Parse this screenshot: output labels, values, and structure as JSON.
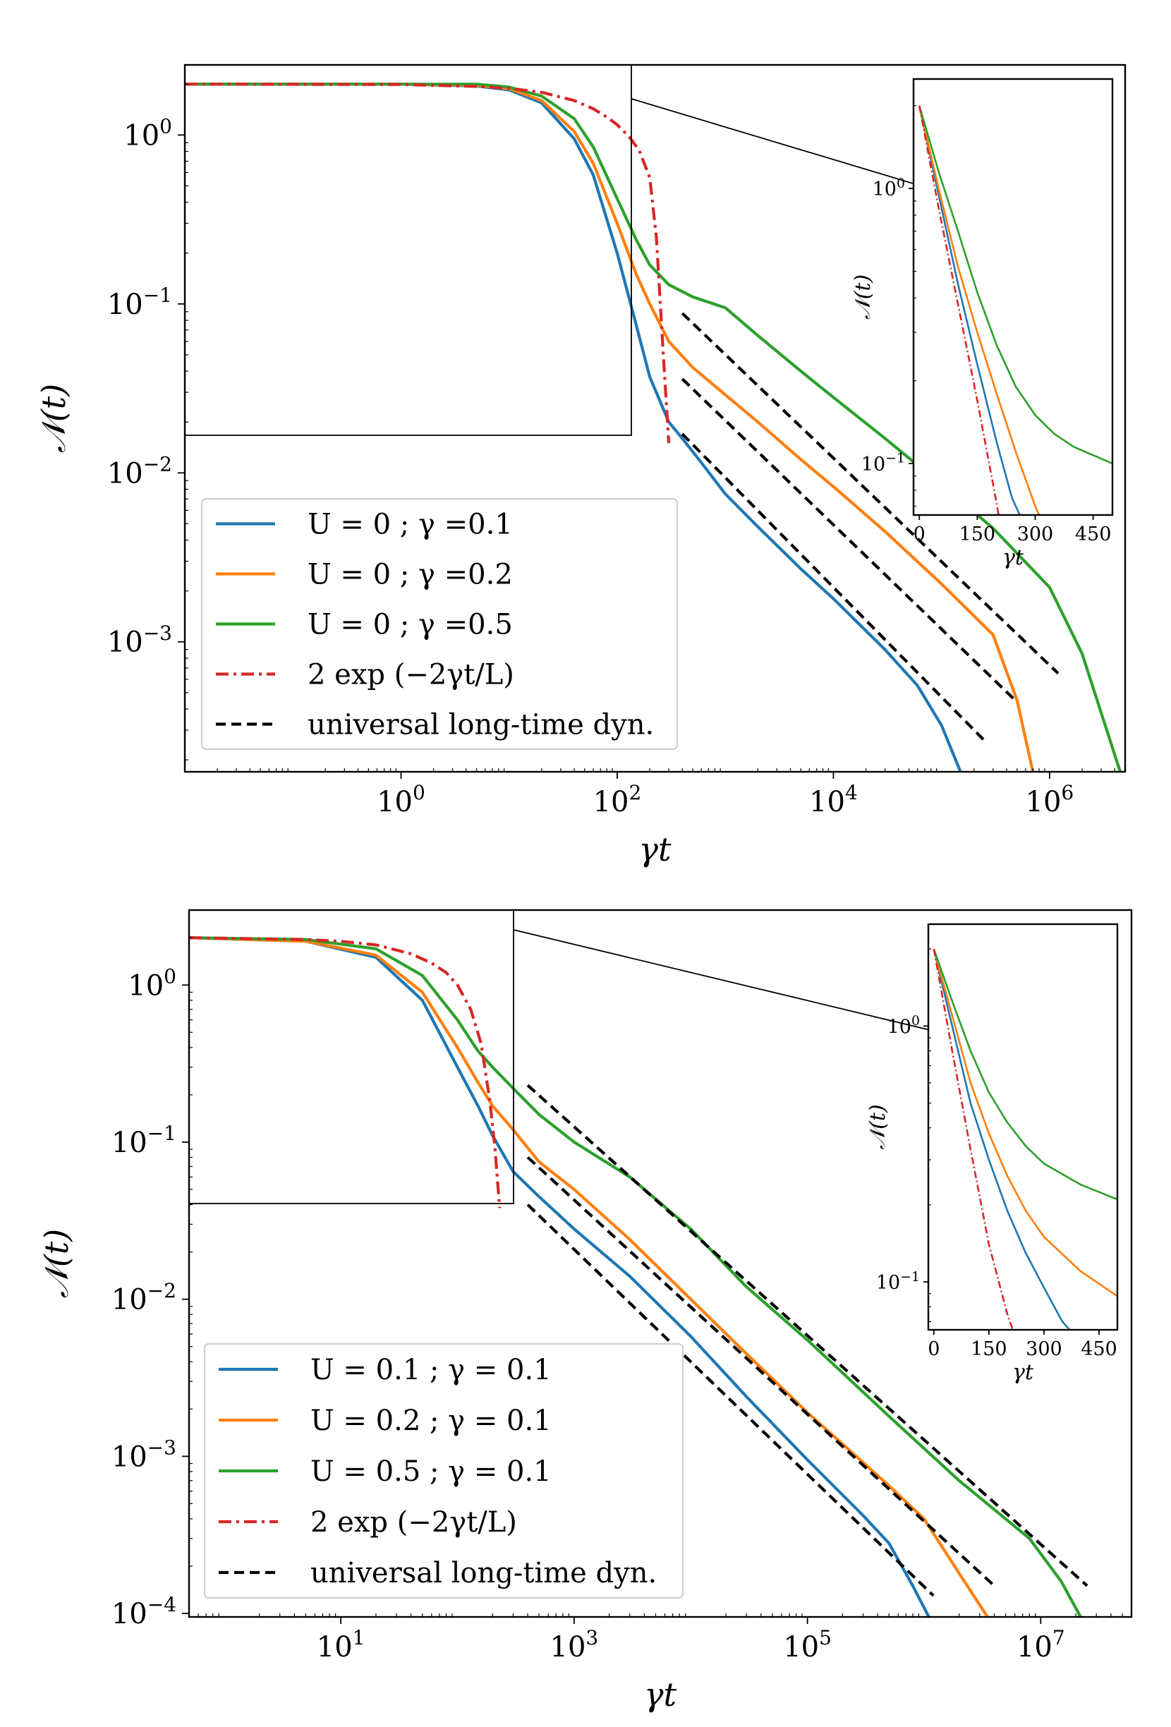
{
  "chart_data": [
    {
      "type": "line",
      "title": "",
      "xlabel": "γt",
      "ylabel": "𝒩(t)",
      "xscale": "log",
      "yscale": "log",
      "xlim": [
        0.01,
        5000000
      ],
      "ylim": [
        0.00017,
        2.6
      ],
      "xticks": [
        {
          "v": 1,
          "base": "10",
          "exp": "0"
        },
        {
          "v": 100,
          "base": "10",
          "exp": "2"
        },
        {
          "v": 10000,
          "base": "10",
          "exp": "4"
        },
        {
          "v": 1000000,
          "base": "10",
          "exp": "6"
        }
      ],
      "yticks": [
        {
          "v": 0.001,
          "base": "10",
          "exp": "−3"
        },
        {
          "v": 0.01,
          "base": "10",
          "exp": "−2"
        },
        {
          "v": 0.1,
          "base": "10",
          "exp": "−1"
        },
        {
          "v": 1,
          "base": "10",
          "exp": "0"
        }
      ],
      "legend_position": "lower-left",
      "series": [
        {
          "name": "U = 0 ; γ =0.1",
          "color": "#1f77b4",
          "style": "solid",
          "x": [
            0.01,
            1,
            5,
            10,
            20,
            40,
            60,
            100,
            150,
            200,
            300,
            400,
            600,
            1000,
            2000,
            5000,
            10000,
            30000,
            60000,
            100000,
            150000
          ],
          "y": [
            2.0,
            2.0,
            1.95,
            1.85,
            1.55,
            0.95,
            0.58,
            0.2,
            0.075,
            0.037,
            0.02,
            0.016,
            0.0115,
            0.0075,
            0.0048,
            0.0027,
            0.0018,
            0.0009,
            0.00055,
            0.00032,
            0.00017
          ]
        },
        {
          "name": "U = 0 ; γ =0.2",
          "color": "#ff7f0e",
          "style": "solid",
          "x": [
            0.01,
            1,
            5,
            10,
            20,
            40,
            60,
            100,
            150,
            200,
            300,
            500,
            1000,
            2000,
            5000,
            10000,
            30000,
            100000,
            300000,
            500000,
            700000
          ],
          "y": [
            2.0,
            2.0,
            1.97,
            1.88,
            1.6,
            1.05,
            0.68,
            0.3,
            0.15,
            0.1,
            0.06,
            0.042,
            0.029,
            0.02,
            0.012,
            0.0083,
            0.0045,
            0.0022,
            0.0011,
            0.00045,
            0.00017
          ]
        },
        {
          "name": "U = 0 ; γ =0.5",
          "color": "#2ca02c",
          "style": "solid",
          "x": [
            0.01,
            1,
            5,
            10,
            20,
            40,
            60,
            100,
            150,
            200,
            300,
            500,
            1000,
            2000,
            5000,
            10000,
            30000,
            100000,
            300000,
            1000000,
            2000000,
            4500000
          ],
          "y": [
            2.0,
            2.0,
            2.0,
            1.92,
            1.7,
            1.25,
            0.85,
            0.42,
            0.24,
            0.17,
            0.13,
            0.11,
            0.095,
            0.065,
            0.04,
            0.028,
            0.016,
            0.0085,
            0.0047,
            0.0021,
            0.00085,
            0.00017
          ]
        },
        {
          "name": "2 exp (−2γt/L)",
          "color": "#d62728",
          "style": "dashdot",
          "x": [
            0.01,
            1,
            5,
            10,
            20,
            40,
            60,
            80,
            100,
            130,
            160,
            200,
            230,
            270,
            300
          ],
          "y": [
            2.0,
            1.99,
            1.94,
            1.89,
            1.79,
            1.6,
            1.43,
            1.28,
            1.15,
            0.97,
            0.81,
            0.56,
            0.25,
            0.045,
            0.015
          ]
        },
        {
          "name": "universal long-time dyn.",
          "color": "#000000",
          "style": "dashed",
          "segments": [
            {
              "x": [
                400,
                250000
              ],
              "y": [
                0.017,
                0.00026
              ]
            },
            {
              "x": [
                400,
                500000
              ],
              "y": [
                0.036,
                0.00044
              ]
            },
            {
              "x": [
                400,
                1200000
              ],
              "y": [
                0.088,
                0.00065
              ]
            }
          ]
        }
      ],
      "inset": {
        "xlabel": "γt",
        "ylabel": "𝒩(t)",
        "xscale": "linear",
        "yscale": "log",
        "xlim": [
          -15,
          500
        ],
        "ylim": [
          0.065,
          2.5
        ],
        "xticks": [
          0,
          150,
          300,
          450
        ],
        "yticks": [
          {
            "v": 0.1,
            "base": "10",
            "exp": "−1"
          },
          {
            "v": 1,
            "base": "10",
            "exp": "0"
          }
        ],
        "series": [
          {
            "color": "#1f77b4",
            "style": "solid",
            "x": [
              0,
              50,
              100,
              150,
              200,
              240,
              260
            ],
            "y": [
              2.0,
              0.95,
              0.45,
              0.23,
              0.12,
              0.075,
              0.065
            ]
          },
          {
            "color": "#ff7f0e",
            "style": "solid",
            "x": [
              0,
              50,
              100,
              150,
              200,
              250,
              300,
              310
            ],
            "y": [
              2.0,
              1.0,
              0.52,
              0.3,
              0.18,
              0.11,
              0.07,
              0.065
            ]
          },
          {
            "color": "#2ca02c",
            "style": "solid",
            "x": [
              0,
              50,
              100,
              150,
              200,
              250,
              300,
              350,
              400,
              500
            ],
            "y": [
              2.0,
              1.15,
              0.7,
              0.42,
              0.27,
              0.19,
              0.15,
              0.128,
              0.115,
              0.1
            ]
          },
          {
            "color": "#d62728",
            "style": "dashdot",
            "x": [
              0,
              50,
              100,
              150,
              200,
              205
            ],
            "y": [
              2.0,
              0.85,
              0.38,
              0.17,
              0.072,
              0.065
            ]
          }
        ]
      }
    },
    {
      "type": "line",
      "title": "",
      "xlabel": "γt",
      "ylabel": "𝒩(t)",
      "xscale": "log",
      "yscale": "log",
      "xlim": [
        0.5,
        60000000
      ],
      "ylim": [
        9.5e-05,
        3.0
      ],
      "xticks": [
        {
          "v": 10,
          "base": "10",
          "exp": "1"
        },
        {
          "v": 1000,
          "base": "10",
          "exp": "3"
        },
        {
          "v": 100000,
          "base": "10",
          "exp": "5"
        },
        {
          "v": 10000000,
          "base": "10",
          "exp": "7"
        }
      ],
      "yticks": [
        {
          "v": 0.0001,
          "base": "10",
          "exp": "−4"
        },
        {
          "v": 0.001,
          "base": "10",
          "exp": "−3"
        },
        {
          "v": 0.01,
          "base": "10",
          "exp": "−2"
        },
        {
          "v": 0.1,
          "base": "10",
          "exp": "−1"
        },
        {
          "v": 1,
          "base": "10",
          "exp": "0"
        }
      ],
      "legend_position": "lower-left",
      "series": [
        {
          "name": "U = 0.1 ; γ = 0.1",
          "color": "#1f77b4",
          "style": "solid",
          "x": [
            0.5,
            5,
            20,
            50,
            100,
            150,
            200,
            300,
            500,
            1000,
            3000,
            10000,
            30000,
            100000,
            300000,
            500000,
            800000,
            1100000
          ],
          "y": [
            2.0,
            1.9,
            1.5,
            0.8,
            0.3,
            0.17,
            0.11,
            0.065,
            0.045,
            0.028,
            0.014,
            0.0058,
            0.0024,
            0.00095,
            0.00042,
            0.00028,
            0.00015,
            9.5e-05
          ]
        },
        {
          "name": "U = 0.2 ; γ = 0.1",
          "color": "#ff7f0e",
          "style": "solid",
          "x": [
            0.5,
            5,
            20,
            50,
            100,
            150,
            200,
            300,
            500,
            1000,
            3000,
            10000,
            30000,
            100000,
            500000,
            1000000,
            2000000,
            3500000
          ],
          "y": [
            2.0,
            1.9,
            1.55,
            0.9,
            0.4,
            0.24,
            0.17,
            0.12,
            0.075,
            0.05,
            0.024,
            0.01,
            0.0045,
            0.0019,
            0.00065,
            0.0004,
            0.00018,
            9.5e-05
          ]
        },
        {
          "name": "U = 0.5 ; γ = 0.1",
          "color": "#2ca02c",
          "style": "solid",
          "x": [
            0.5,
            5,
            20,
            50,
            100,
            150,
            200,
            300,
            500,
            1000,
            3000,
            10000,
            30000,
            100000,
            500000,
            2000000,
            8000000,
            15000000,
            22000000
          ],
          "y": [
            2.0,
            1.95,
            1.7,
            1.15,
            0.6,
            0.38,
            0.3,
            0.22,
            0.15,
            0.1,
            0.06,
            0.028,
            0.012,
            0.0055,
            0.0018,
            0.0007,
            0.0003,
            0.00016,
            9.5e-05
          ]
        },
        {
          "name": "2 exp (−2γt/L)",
          "color": "#d62728",
          "style": "dashdot",
          "x": [
            0.5,
            5,
            10,
            20,
            40,
            60,
            80,
            100,
            130,
            160,
            190,
            210,
            230
          ],
          "y": [
            2.0,
            1.95,
            1.9,
            1.8,
            1.58,
            1.38,
            1.2,
            1.0,
            0.7,
            0.42,
            0.18,
            0.09,
            0.038
          ]
        },
        {
          "name": "universal long-time dyn.",
          "color": "#000000",
          "style": "dashed",
          "segments": [
            {
              "x": [
                400,
                1200000
              ],
              "y": [
                0.04,
                0.00013
              ]
            },
            {
              "x": [
                400,
                4000000
              ],
              "y": [
                0.08,
                0.00015
              ]
            },
            {
              "x": [
                400,
                25000000
              ],
              "y": [
                0.23,
                0.00015
              ]
            }
          ]
        }
      ],
      "inset": {
        "xlabel": "γt",
        "ylabel": "𝒩(t)",
        "xscale": "linear",
        "yscale": "log",
        "xlim": [
          -15,
          500
        ],
        "ylim": [
          0.065,
          2.5
        ],
        "xticks": [
          0,
          150,
          300,
          450
        ],
        "yticks": [
          {
            "v": 0.1,
            "base": "10",
            "exp": "−1"
          },
          {
            "v": 1,
            "base": "10",
            "exp": "0"
          }
        ],
        "series": [
          {
            "color": "#1f77b4",
            "style": "solid",
            "x": [
              0,
              50,
              100,
              150,
              200,
              250,
              300,
              350,
              370
            ],
            "y": [
              2.0,
              1.0,
              0.5,
              0.3,
              0.19,
              0.13,
              0.095,
              0.07,
              0.065
            ]
          },
          {
            "color": "#ff7f0e",
            "style": "solid",
            "x": [
              0,
              50,
              100,
              150,
              200,
              250,
              300,
              400,
              500
            ],
            "y": [
              2.0,
              1.1,
              0.6,
              0.38,
              0.26,
              0.19,
              0.15,
              0.11,
              0.088
            ]
          },
          {
            "color": "#2ca02c",
            "style": "solid",
            "x": [
              0,
              50,
              100,
              150,
              200,
              250,
              300,
              400,
              500
            ],
            "y": [
              2.0,
              1.25,
              0.8,
              0.55,
              0.42,
              0.34,
              0.29,
              0.24,
              0.21
            ]
          },
          {
            "color": "#d62728",
            "style": "dashdot",
            "x": [
              0,
              50,
              100,
              150,
              200,
              215
            ],
            "y": [
              2.0,
              0.8,
              0.33,
              0.14,
              0.075,
              0.065
            ]
          }
        ]
      }
    }
  ]
}
